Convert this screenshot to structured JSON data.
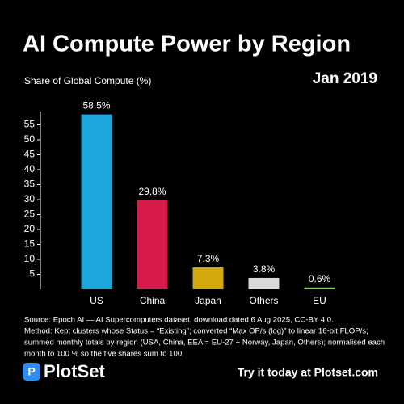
{
  "chart_data": {
    "type": "bar",
    "title": "AI Compute Power by Region",
    "subtitle": "Jan 2019",
    "y_label": "Share of Global Compute (%)",
    "categories": [
      "US",
      "China",
      "Japan",
      "Others",
      "EU"
    ],
    "values": [
      58.5,
      29.8,
      7.3,
      3.8,
      0.6
    ],
    "value_labels": [
      "58.5%",
      "29.8%",
      "7.3%",
      "3.8%",
      "0.6%"
    ],
    "colors": [
      "#1ba6dc",
      "#d81b4b",
      "#d4a80f",
      "#d9d9d9",
      "#7fd957"
    ],
    "ylim": [
      0,
      60
    ],
    "yticks": [
      5,
      10,
      15,
      20,
      25,
      30,
      35,
      40,
      45,
      50,
      55
    ],
    "grid": false,
    "notes": [
      "Source: Epoch AI — AI Supercomputers dataset, download dated 6 Aug 2025, CC-BY 4.0.",
      "Method: Kept clusters whose Status = “Existing”; converted “Max OP/s (log)” to linear 16-bit FLOP/s;",
      "summed monthly totals by region (USA, China, EEA = EU-27 + Norway, Japan, Others); normalised each",
      "month to 100 % so the five shares sum to 100."
    ]
  },
  "footer": {
    "brand": "PlotSet",
    "cta": "Try it today at Plotset.com"
  }
}
